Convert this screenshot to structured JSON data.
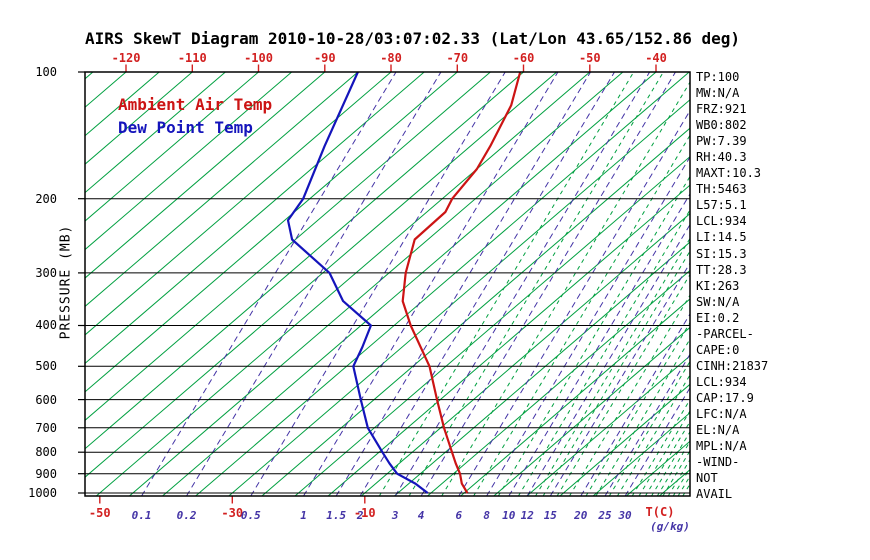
{
  "chart_data": {
    "type": "line",
    "subtype": "skewt-log-p",
    "title": "AIRS SkewT Diagram 2010-10-28/03:07:02.33 (Lat/Lon 43.65/152.86 deg)",
    "legend": {
      "temperature": "Ambient Air Temp",
      "dew_point": "Dew Point Temp",
      "position": "top-left-inside"
    },
    "colors": {
      "temperature": "#cc1414",
      "dew_point": "#1414bb",
      "isotherm": "#00a040",
      "mixing_ratio": "#4434a6",
      "moist_guides": "#00a040",
      "axis": "#000000",
      "temp_labels": "#d22020"
    },
    "pressure_axis": {
      "label": "PRESSURE (MB)",
      "levels": [
        100,
        200,
        300,
        400,
        500,
        600,
        700,
        800,
        900,
        1000
      ],
      "scale": "log",
      "range_mb": [
        100,
        1000
      ]
    },
    "temp_axis": {
      "top_labels": [
        -120,
        -110,
        -100,
        -90,
        -80,
        -70,
        -60,
        -50,
        -40
      ],
      "bottom_labels": [
        -50,
        -30,
        -10
      ],
      "unit_label": "T(C)",
      "isotherm_step_c": 5,
      "grid": "on"
    },
    "mixing_ratio_axis": {
      "unit_label": "(g/kg)",
      "labeled_values": [
        0.1,
        0.2,
        0.5,
        1,
        1.5,
        2,
        3,
        4,
        6,
        8,
        10,
        12,
        15,
        20,
        25,
        30
      ],
      "unlabeled_values": [
        2.5,
        3.5,
        5,
        7,
        9,
        11,
        13,
        14,
        16,
        18,
        21,
        23,
        26,
        28,
        32,
        34,
        36,
        38,
        40,
        42,
        44,
        46,
        48,
        50
      ]
    },
    "series": {
      "temperature_c_by_mb": [
        [
          1000,
          5.5
        ],
        [
          950,
          3.0
        ],
        [
          900,
          1.0
        ],
        [
          850,
          -1.5
        ],
        [
          800,
          -4.0
        ],
        [
          700,
          -9.5
        ],
        [
          600,
          -15.5
        ],
        [
          500,
          -22.5
        ],
        [
          400,
          -32.5
        ],
        [
          350,
          -38.0
        ],
        [
          300,
          -42.5
        ],
        [
          250,
          -47.0
        ],
        [
          215,
          -47.2
        ],
        [
          200,
          -48.5
        ],
        [
          170,
          -50.0
        ],
        [
          150,
          -52.0
        ],
        [
          120,
          -56.0
        ],
        [
          100,
          -60.5
        ]
      ],
      "dew_point_c_by_mb": [
        [
          1000,
          -0.5
        ],
        [
          950,
          -4.0
        ],
        [
          900,
          -8.5
        ],
        [
          850,
          -11.5
        ],
        [
          800,
          -14.5
        ],
        [
          700,
          -21.0
        ],
        [
          600,
          -27.0
        ],
        [
          500,
          -34.0
        ],
        [
          450,
          -36.0
        ],
        [
          400,
          -38.5
        ],
        [
          350,
          -47.0
        ],
        [
          300,
          -54.0
        ],
        [
          250,
          -65.5
        ],
        [
          225,
          -69.5
        ],
        [
          200,
          -71.0
        ],
        [
          150,
          -77.0
        ],
        [
          100,
          -85.0
        ]
      ]
    },
    "stats_panel": [
      "TP:100",
      "MW:N/A",
      "FRZ:921",
      "WB0:802",
      "PW:7.39",
      "RH:40.3",
      "MAXT:10.3",
      "TH:5463",
      "L57:5.1",
      "LCL:934",
      "LI:14.5",
      "SI:15.3",
      "TT:28.3",
      "KI:263",
      "SW:N/A",
      "EI:0.2",
      "-PARCEL-",
      "CAPE:0",
      "CINH:21837",
      "LCL:934",
      "CAP:17.9",
      "LFC:N/A",
      "EL:N/A",
      "MPL:N/A",
      "-WIND-",
      "NOT",
      "AVAIL"
    ]
  }
}
